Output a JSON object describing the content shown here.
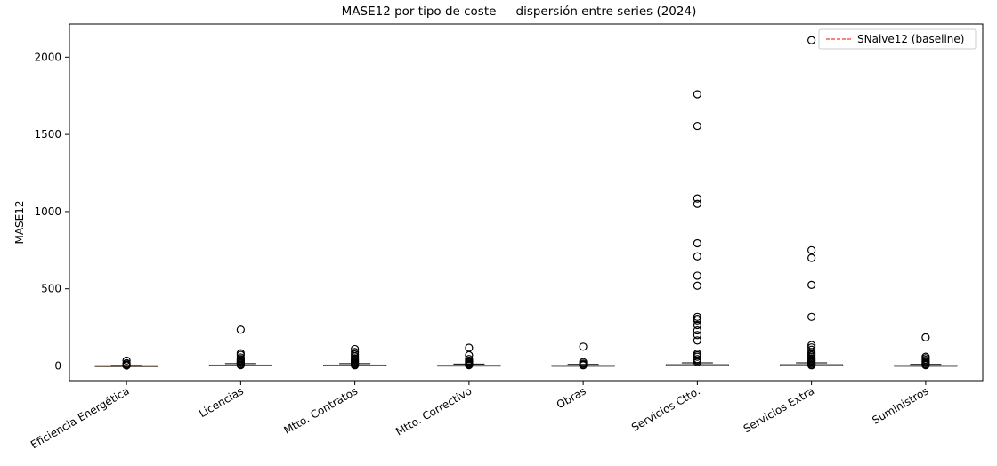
{
  "chart_data": {
    "type": "box",
    "title": "MASE12 por tipo de coste — dispersión entre series (2024)",
    "xlabel": "",
    "ylabel": "MASE12",
    "ylim": [
      -95,
      2215
    ],
    "yticks": [
      0,
      500,
      1000,
      1500,
      2000
    ],
    "grid": false,
    "legend": {
      "placement": "top-right",
      "entries": [
        "SNaive12 (baseline)"
      ]
    },
    "reference_line": {
      "name": "SNaive12 (baseline)",
      "y": 0,
      "color": "#ff0000",
      "style": "dashed"
    },
    "categories": [
      "Eficiencia Energética",
      "Licencias",
      "Mtto. Contratos",
      "Mtto. Correctivo",
      "Obras",
      "Servicios Ctto.",
      "Servicios Extra",
      "Suministros"
    ],
    "series": [
      {
        "category": "Eficiencia Energética",
        "q1": 0.5,
        "median": 1.0,
        "q3": 2,
        "whisker_low": 0,
        "whisker_high": 5,
        "outliers": [
          35,
          18,
          10,
          6,
          3
        ]
      },
      {
        "category": "Licencias",
        "q1": 1,
        "median": 2.5,
        "q3": 6,
        "whisker_low": 0,
        "whisker_high": 15,
        "outliers": [
          235,
          82,
          72,
          55,
          45,
          38,
          32,
          27,
          22,
          18,
          10,
          5
        ]
      },
      {
        "category": "Mtto. Contratos",
        "q1": 1,
        "median": 2.5,
        "q3": 6,
        "whisker_low": 0,
        "whisker_high": 15,
        "outliers": [
          110,
          90,
          75,
          62,
          50,
          42,
          35,
          28,
          22,
          18,
          12,
          8,
          4
        ]
      },
      {
        "category": "Mtto. Correctivo",
        "q1": 1,
        "median": 2.5,
        "q3": 5,
        "whisker_low": 0,
        "whisker_high": 12,
        "outliers": [
          118,
          70,
          45,
          35,
          28,
          22,
          16,
          10,
          5
        ]
      },
      {
        "category": "Obras",
        "q1": 1,
        "median": 2,
        "q3": 4,
        "whisker_low": 0,
        "whisker_high": 10,
        "outliers": [
          125,
          25,
          15,
          8,
          4
        ]
      },
      {
        "category": "Servicios Ctto.",
        "q1": 1,
        "median": 3,
        "q3": 8,
        "whisker_low": 0,
        "whisker_high": 20,
        "outliers": [
          1760,
          1555,
          1085,
          1050,
          795,
          710,
          585,
          520,
          318,
          305,
          295,
          265,
          230,
          200,
          165,
          80,
          70,
          60,
          45,
          35,
          25
        ]
      },
      {
        "category": "Servicios Extra",
        "q1": 1,
        "median": 3,
        "q3": 8,
        "whisker_low": 0,
        "whisker_high": 20,
        "outliers": [
          2110,
          750,
          700,
          525,
          318,
          135,
          120,
          105,
          90,
          80,
          70,
          60,
          50,
          42,
          35,
          28,
          22,
          15,
          8,
          4
        ]
      },
      {
        "category": "Suministros",
        "q1": 0.5,
        "median": 1.5,
        "q3": 4,
        "whisker_low": 0,
        "whisker_high": 10,
        "outliers": [
          185,
          60,
          50,
          40,
          32,
          25,
          18,
          10,
          5
        ]
      }
    ],
    "colors": {
      "median": "#ff7f0e",
      "box": "#000000",
      "outlier": "#000000",
      "baseline": "#ff0000"
    }
  }
}
